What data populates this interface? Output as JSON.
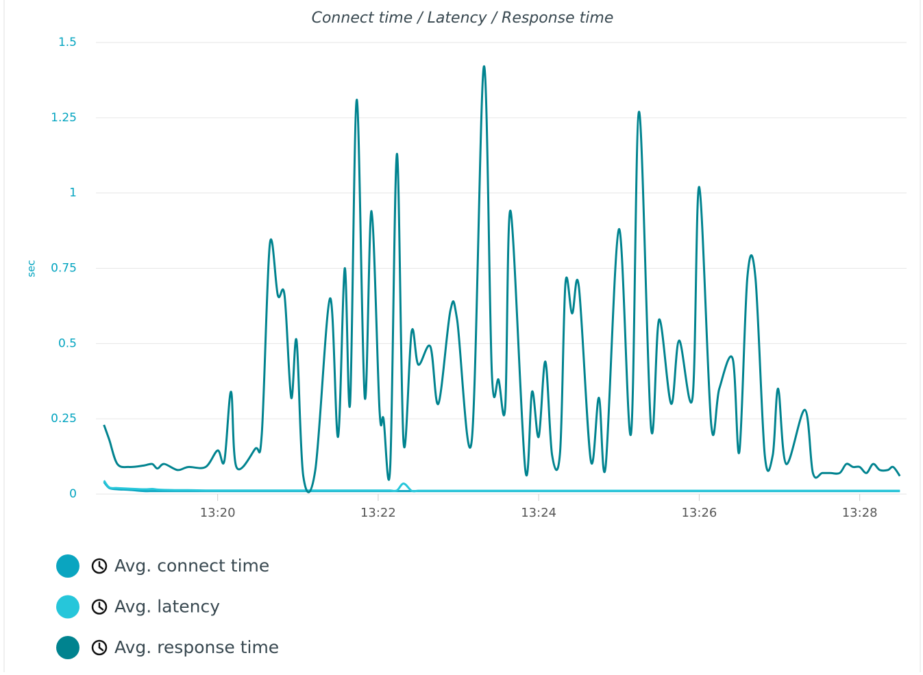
{
  "chart_data": {
    "type": "line",
    "title": "Connect time / Latency / Response time",
    "y_label": "sec",
    "x": [
      "13:18:35",
      "13:18:39",
      "13:18:45",
      "13:18:54",
      "13:19:05",
      "13:19:11",
      "13:19:15",
      "13:19:20",
      "13:19:30",
      "13:19:38",
      "13:19:51",
      "13:20:00",
      "13:20:05",
      "13:20:10",
      "13:20:14",
      "13:20:28",
      "13:20:33",
      "13:20:39",
      "13:20:45",
      "13:20:50",
      "13:20:55",
      "13:20:59",
      "13:21:04",
      "13:21:13",
      "13:21:24",
      "13:21:30",
      "13:21:35",
      "13:21:39",
      "13:21:44",
      "13:21:50",
      "13:21:55",
      "13:22:01",
      "13:22:04",
      "13:22:09",
      "13:22:14",
      "13:22:19",
      "13:22:25",
      "13:22:30",
      "13:22:39",
      "13:22:45",
      "13:22:54",
      "13:22:59",
      "13:23:10",
      "13:23:19",
      "13:23:25",
      "13:23:30",
      "13:23:35",
      "13:23:39",
      "13:23:50",
      "13:23:55",
      "13:24:00",
      "13:24:05",
      "13:24:10",
      "13:24:16",
      "13:24:20",
      "13:24:25",
      "13:24:30",
      "13:24:39",
      "13:24:45",
      "13:24:50",
      "13:25:00",
      "13:25:09",
      "13:25:15",
      "13:25:24",
      "13:25:30",
      "13:25:39",
      "13:25:45",
      "13:25:55",
      "13:26:00",
      "13:26:09",
      "13:26:15",
      "13:26:25",
      "13:26:30",
      "13:26:36",
      "13:26:42",
      "13:26:49",
      "13:26:55",
      "13:26:59",
      "13:27:05",
      "13:27:19",
      "13:27:25",
      "13:27:32",
      "13:27:38",
      "13:27:45",
      "13:27:50",
      "13:27:55",
      "13:28:00",
      "13:28:05",
      "13:28:10",
      "13:28:15",
      "13:28:21",
      "13:28:25",
      "13:28:30"
    ],
    "series": [
      {
        "name": "Avg. connect time",
        "color": "#0aa5c0",
        "values": [
          0.04,
          0.02,
          0.016,
          0.014,
          0.01,
          0.01,
          0.01,
          0.01,
          0.01,
          0.01,
          0.01,
          0.01,
          0.01,
          0.01,
          0.01,
          0.01,
          0.01,
          0.01,
          0.01,
          0.01,
          0.01,
          0.01,
          0.01,
          0.01,
          0.01,
          0.01,
          0.01,
          0.01,
          0.01,
          0.01,
          0.01,
          0.01,
          0.01,
          0.01,
          0.01,
          0.01,
          0.01,
          0.01,
          0.01,
          0.01,
          0.01,
          0.01,
          0.01,
          0.01,
          0.01,
          0.01,
          0.01,
          0.01,
          0.01,
          0.01,
          0.01,
          0.01,
          0.01,
          0.01,
          0.01,
          0.01,
          0.01,
          0.01,
          0.01,
          0.01,
          0.01,
          0.01,
          0.01,
          0.01,
          0.01,
          0.01,
          0.01,
          0.01,
          0.01,
          0.01,
          0.01,
          0.01,
          0.01,
          0.01,
          0.01,
          0.01,
          0.01,
          0.01,
          0.01,
          0.01,
          0.01,
          0.01,
          0.01,
          0.01,
          0.01,
          0.01,
          0.01,
          0.01,
          0.01,
          0.01,
          0.01,
          0.01,
          0.01
        ]
      },
      {
        "name": "Avg. latency",
        "color": "#26c6da",
        "values": [
          0.045,
          0.022,
          0.02,
          0.018,
          0.016,
          0.017,
          0.015,
          0.014,
          0.013,
          0.013,
          0.012,
          0.012,
          0.012,
          0.012,
          0.012,
          0.012,
          0.012,
          0.012,
          0.012,
          0.012,
          0.012,
          0.012,
          0.012,
          0.012,
          0.012,
          0.012,
          0.012,
          0.012,
          0.012,
          0.012,
          0.012,
          0.012,
          0.012,
          0.012,
          0.012,
          0.035,
          0.011,
          0.011,
          0.011,
          0.011,
          0.011,
          0.011,
          0.011,
          0.011,
          0.011,
          0.011,
          0.011,
          0.011,
          0.011,
          0.011,
          0.011,
          0.011,
          0.011,
          0.011,
          0.011,
          0.011,
          0.011,
          0.011,
          0.011,
          0.011,
          0.011,
          0.011,
          0.011,
          0.011,
          0.011,
          0.011,
          0.011,
          0.011,
          0.011,
          0.011,
          0.011,
          0.011,
          0.011,
          0.011,
          0.011,
          0.011,
          0.011,
          0.011,
          0.011,
          0.011,
          0.011,
          0.011,
          0.011,
          0.011,
          0.011,
          0.011,
          0.011,
          0.011,
          0.011,
          0.011,
          0.011,
          0.011,
          0.011
        ]
      },
      {
        "name": "Avg. response time",
        "color": "#00838f",
        "values": [
          0.23,
          0.18,
          0.1,
          0.09,
          0.095,
          0.1,
          0.085,
          0.1,
          0.08,
          0.09,
          0.09,
          0.145,
          0.11,
          0.34,
          0.09,
          0.15,
          0.2,
          0.83,
          0.66,
          0.66,
          0.32,
          0.51,
          0.06,
          0.08,
          0.65,
          0.19,
          0.75,
          0.3,
          1.31,
          0.32,
          0.94,
          0.28,
          0.25,
          0.09,
          1.13,
          0.17,
          0.54,
          0.43,
          0.49,
          0.3,
          0.61,
          0.58,
          0.18,
          1.42,
          0.4,
          0.38,
          0.29,
          0.94,
          0.08,
          0.34,
          0.19,
          0.44,
          0.13,
          0.14,
          0.7,
          0.6,
          0.69,
          0.11,
          0.32,
          0.09,
          0.88,
          0.2,
          1.27,
          0.22,
          0.58,
          0.3,
          0.51,
          0.32,
          1.02,
          0.23,
          0.35,
          0.45,
          0.14,
          0.72,
          0.72,
          0.13,
          0.13,
          0.35,
          0.1,
          0.28,
          0.07,
          0.07,
          0.07,
          0.07,
          0.1,
          0.09,
          0.09,
          0.07,
          0.1,
          0.08,
          0.08,
          0.09,
          0.06
        ]
      }
    ],
    "xlim": [
      "13:18:29",
      "13:28:35"
    ],
    "xticks": [
      "13:20",
      "13:22",
      "13:24",
      "13:26",
      "13:28"
    ],
    "ylim": [
      0,
      1.5
    ],
    "yticks": [
      0,
      0.25,
      0.5,
      0.75,
      1,
      1.25,
      1.5
    ],
    "grid": true
  }
}
